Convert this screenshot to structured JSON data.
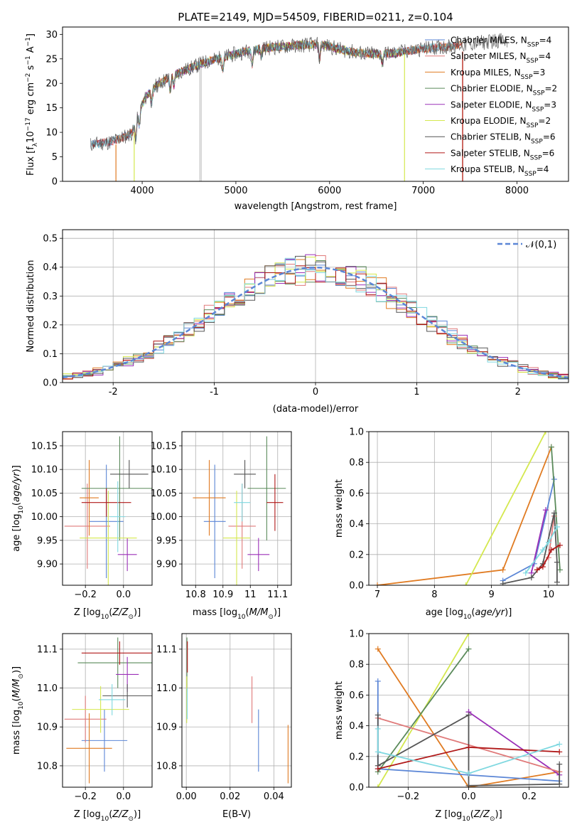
{
  "figure_title": "PLATE=2149, MJD=54509, FIBERID=0211, z=0.104",
  "colors": {
    "Chabrier MILES": "#5b86d6",
    "Salpeter MILES": "#e07a7a",
    "Kroupa MILES": "#e07b22",
    "Chabrier ELODIE": "#5a8a5a",
    "Salpeter ELODIE": "#9b30b8",
    "Kroupa ELODIE": "#d4e84e",
    "Chabrier STELIB": "#555555",
    "Salpeter STELIB": "#b01818",
    "Kroupa STELIB": "#7fd8e0",
    "Salpeter MILES (corner panels)": "#e38aa8"
  },
  "chart_data": [
    {
      "id": "spectrum",
      "type": "line",
      "title": "",
      "xlabel": "wavelength [Angstrom, rest frame]",
      "ylabel": "Flux [f_λ 10^-17 erg cm^-2 s^-1 A^-1]",
      "xlim": [
        3150,
        8550
      ],
      "ylim": [
        0,
        31.5
      ],
      "xticks": [
        4000,
        5000,
        6000,
        7000,
        8000
      ],
      "yticks": [
        0,
        5,
        10,
        15,
        20,
        25,
        30
      ],
      "grid": false,
      "legend_position": "top-right",
      "legend": [
        {
          "label": "Chabrier MILES, N_SSP=4",
          "base": "Chabrier MILES, N",
          "sub": "SSP",
          "suffix": "=4",
          "color_key": "Chabrier MILES"
        },
        {
          "label": "Salpeter MILES, N_SSP=4",
          "base": "Salpeter MILES, N",
          "sub": "SSP",
          "suffix": "=4",
          "color_key": "Salpeter MILES"
        },
        {
          "label": "Kroupa MILES, N_SSP=3",
          "base": "Kroupa MILES, N",
          "sub": "SSP",
          "suffix": "=3",
          "color_key": "Kroupa MILES"
        },
        {
          "label": "Chabrier ELODIE, N_SSP=2",
          "base": "Chabrier ELODIE, N",
          "sub": "SSP",
          "suffix": "=2",
          "color_key": "Chabrier ELODIE"
        },
        {
          "label": "Salpeter ELODIE, N_SSP=3",
          "base": "Salpeter ELODIE, N",
          "sub": "SSP",
          "suffix": "=3",
          "color_key": "Salpeter ELODIE"
        },
        {
          "label": "Kroupa ELODIE, N_SSP=2",
          "base": "Kroupa ELODIE, N",
          "sub": "SSP",
          "suffix": "=2",
          "color_key": "Kroupa ELODIE"
        },
        {
          "label": "Chabrier STELIB, N_SSP=6",
          "base": "Chabrier STELIB, N",
          "sub": "SSP",
          "suffix": "=6",
          "color_key": "Chabrier STELIB"
        },
        {
          "label": "Salpeter STELIB, N_SSP=6",
          "base": "Salpeter STELIB, N",
          "sub": "SSP",
          "suffix": "=6",
          "color_key": "Salpeter STELIB"
        },
        {
          "label": "Kroupa STELIB, N_SSP=4",
          "base": "Kroupa STELIB, N",
          "sub": "SSP",
          "suffix": "=4",
          "color_key": "Kroupa STELIB"
        }
      ],
      "continuum": {
        "x": [
          3450,
          3650,
          3800,
          3900,
          3950,
          4050,
          4150,
          4300,
          4500,
          4700,
          4900,
          5100,
          5300,
          5500,
          5700,
          5900,
          6100,
          6300,
          6500,
          6700,
          6900,
          7100,
          7300,
          7500,
          7700,
          7800,
          7900
        ],
        "y": [
          7.5,
          8.0,
          9.0,
          10.0,
          14.0,
          17.5,
          19.5,
          21.5,
          23.0,
          24.5,
          25.5,
          26.5,
          27.2,
          27.5,
          27.8,
          28.0,
          27.0,
          26.2,
          26.0,
          26.2,
          26.8,
          27.3,
          27.6,
          28.0,
          28.5,
          28.8,
          28.5
        ]
      },
      "absorption_lines": [
        {
          "x": 3934,
          "depth": 4
        },
        {
          "x": 3969,
          "depth": 3.5
        },
        {
          "x": 4102,
          "depth": 2.5
        },
        {
          "x": 4300,
          "depth": 3
        },
        {
          "x": 4340,
          "depth": 2.5
        },
        {
          "x": 4861,
          "depth": 2.5
        },
        {
          "x": 5175,
          "depth": 3
        },
        {
          "x": 5270,
          "depth": 1.5
        },
        {
          "x": 5893,
          "depth": 3
        },
        {
          "x": 6563,
          "depth": 2
        }
      ],
      "edge_drops": [
        {
          "series": "Kroupa MILES",
          "x_start": 3720,
          "y_start": 7.5
        },
        {
          "series": "Kroupa MILES",
          "x_end": 7420,
          "y_end": 26.5
        },
        {
          "series": "Kroupa ELODIE",
          "x_start": 3915,
          "y_start": 10.0
        },
        {
          "series": "Kroupa ELODIE",
          "x_end": 6800,
          "y_end": 26.0
        },
        {
          "series": "Salpeter STELIB",
          "x_end": 7420,
          "y_end": 26.5
        }
      ],
      "masked_regions": [
        {
          "x": 4615,
          "ymax": 25.5
        },
        {
          "x": 4630,
          "ymax": 25.5
        }
      ]
    },
    {
      "id": "residuals",
      "type": "step",
      "xlabel": "(data-model)/error",
      "ylabel": "Normed distribution",
      "xlim": [
        -2.5,
        2.5
      ],
      "ylim": [
        0,
        0.53
      ],
      "xticks": [
        -2,
        -1,
        0,
        1,
        2
      ],
      "yticks": [
        0.0,
        0.1,
        0.2,
        0.3,
        0.4,
        0.5
      ],
      "grid": true,
      "legend_position": "top-right",
      "legend": [
        {
          "label": "𝒩(0,1)",
          "style": "dashed",
          "color_key": "Chabrier MILES"
        }
      ],
      "bin_width": 0.1,
      "bins_start": -2.5,
      "reference_curve": "standard normal density",
      "series": [
        {
          "name": "Chabrier MILES",
          "jitter_seed": 1
        },
        {
          "name": "Salpeter MILES",
          "jitter_seed": 2
        },
        {
          "name": "Kroupa MILES",
          "jitter_seed": 3
        },
        {
          "name": "Chabrier ELODIE",
          "jitter_seed": 4
        },
        {
          "name": "Salpeter ELODIE",
          "jitter_seed": 5
        },
        {
          "name": "Kroupa ELODIE",
          "jitter_seed": 6
        },
        {
          "name": "Chabrier STELIB",
          "jitter_seed": 7
        },
        {
          "name": "Salpeter STELIB",
          "jitter_seed": 8
        },
        {
          "name": "Kroupa STELIB",
          "jitter_seed": 9
        }
      ]
    },
    {
      "id": "age_vs_Z",
      "type": "scatter",
      "xlabel": "Z [log10(Z/Z⊙)]",
      "ylabel": "age [log10(age/yr)]",
      "xlim": [
        -0.32,
        0.15
      ],
      "ylim": [
        9.855,
        10.18
      ],
      "xticks": [
        -0.2,
        0.0
      ],
      "xticklabels": [
        "−0.2",
        "0.0"
      ],
      "yticks": [
        9.9,
        9.95,
        10.0,
        10.05,
        10.1,
        10.15
      ],
      "grid": true,
      "points": [
        {
          "series": "Chabrier MILES",
          "x": -0.09,
          "y": 9.99,
          "xerr": 0.09,
          "yerr": 0.12
        },
        {
          "series": "Salpeter MILES",
          "x": -0.19,
          "y": 9.98,
          "xerr": 0.12,
          "yerr": 0.09
        },
        {
          "series": "Kroupa MILES",
          "x": -0.18,
          "y": 10.04,
          "xerr": 0.05,
          "yerr": 0.08
        },
        {
          "series": "Chabrier ELODIE",
          "x": -0.02,
          "y": 10.06,
          "xerr": 0.2,
          "yerr": 0.11
        },
        {
          "series": "Salpeter ELODIE",
          "x": 0.02,
          "y": 9.92,
          "xerr": 0.05,
          "yerr": 0.035
        },
        {
          "series": "Kroupa ELODIE",
          "x": -0.08,
          "y": 9.955,
          "xerr": 0.15,
          "yerr": 0.1
        },
        {
          "series": "Chabrier STELIB",
          "x": 0.03,
          "y": 10.09,
          "xerr": 0.1,
          "yerr": 0.03
        },
        {
          "series": "Salpeter STELIB",
          "x": -0.09,
          "y": 10.03,
          "xerr": 0.13,
          "yerr": 0.03
        },
        {
          "series": "Kroupa STELIB",
          "x": -0.03,
          "y": 10.0,
          "xerr": 0.04,
          "yerr": 0.075
        }
      ]
    },
    {
      "id": "age_vs_mass",
      "type": "scatter",
      "xlabel": "mass [log10(M/M⊙)]",
      "ylabel": "",
      "xlim": [
        10.75,
        11.15
      ],
      "ylim": [
        9.855,
        10.18
      ],
      "xticks": [
        10.8,
        10.9,
        11.0,
        11.1
      ],
      "yticks": [
        9.9,
        9.95,
        10.0,
        10.05,
        10.1,
        10.15
      ],
      "grid": true,
      "points": [
        {
          "series": "Chabrier MILES",
          "x": 10.87,
          "y": 9.99,
          "xerr": 0.04,
          "yerr": 0.12
        },
        {
          "series": "Salpeter MILES",
          "x": 10.97,
          "y": 9.98,
          "xerr": 0.05,
          "yerr": 0.09
        },
        {
          "series": "Kroupa MILES",
          "x": 10.85,
          "y": 10.04,
          "xerr": 0.06,
          "yerr": 0.08
        },
        {
          "series": "Chabrier ELODIE",
          "x": 11.06,
          "y": 10.06,
          "xerr": 0.07,
          "yerr": 0.11
        },
        {
          "series": "Salpeter ELODIE",
          "x": 11.03,
          "y": 9.92,
          "xerr": 0.04,
          "yerr": 0.035
        },
        {
          "series": "Kroupa ELODIE",
          "x": 10.95,
          "y": 9.955,
          "xerr": 0.05,
          "yerr": 0.1
        },
        {
          "series": "Chabrier STELIB",
          "x": 10.98,
          "y": 10.09,
          "xerr": 0.04,
          "yerr": 0.03
        },
        {
          "series": "Salpeter STELIB",
          "x": 11.09,
          "y": 10.03,
          "xerr": 0.03,
          "yerr": 0.06
        },
        {
          "series": "Kroupa STELIB",
          "x": 10.97,
          "y": 10.03,
          "xerr": 0.03,
          "yerr": 0.04
        }
      ]
    },
    {
      "id": "weight_vs_age",
      "type": "line",
      "xlabel": "age [log10(age/yr)]",
      "ylabel": "mass weight",
      "xlim": [
        6.85,
        10.35
      ],
      "ylim": [
        0,
        1.0
      ],
      "xticks": [
        7,
        8,
        9,
        10
      ],
      "yticks": [
        0.0,
        0.2,
        0.4,
        0.6,
        0.8,
        1.0
      ],
      "grid": true,
      "series": [
        {
          "name": "Kroupa MILES",
          "x": [
            7.0,
            9.2,
            10.05
          ],
          "y": [
            0.0,
            0.1,
            0.9
          ]
        },
        {
          "name": "Kroupa ELODIE",
          "x": [
            8.55,
            9.95
          ],
          "y": [
            0.0,
            1.0
          ]
        },
        {
          "name": "Chabrier MILES",
          "x": [
            9.2,
            9.75,
            10.1
          ],
          "y": [
            0.03,
            0.14,
            0.69
          ]
        },
        {
          "name": "Chabrier ELODIE",
          "x": [
            10.05,
            10.2
          ],
          "y": [
            0.9,
            0.1
          ]
        },
        {
          "name": "Salpeter ELODIE",
          "x": [
            9.7,
            9.95
          ],
          "y": [
            0.08,
            0.49
          ]
        },
        {
          "name": "Salpeter MILES",
          "x": [
            9.8,
            10.0,
            10.1
          ],
          "y": [
            0.1,
            0.18,
            0.45
          ]
        },
        {
          "name": "Chabrier STELIB",
          "x": [
            9.2,
            9.7,
            9.9,
            10.1,
            10.15,
            10.15
          ],
          "y": [
            0.01,
            0.05,
            0.14,
            0.47,
            0.15,
            0.02
          ]
        },
        {
          "name": "Salpeter STELIB",
          "x": [
            9.8,
            9.9,
            10.05,
            10.2
          ],
          "y": [
            0.1,
            0.12,
            0.23,
            0.26
          ]
        },
        {
          "name": "Kroupa STELIB",
          "x": [
            9.6,
            9.9,
            10.0,
            10.15
          ],
          "y": [
            0.08,
            0.23,
            0.28,
            0.38
          ]
        }
      ]
    },
    {
      "id": "mass_vs_Z",
      "type": "scatter",
      "xlabel": "Z [log10(Z/Z⊙)]",
      "ylabel": "mass [log10(M/M⊙)]",
      "xlim": [
        -0.32,
        0.15
      ],
      "ylim": [
        10.745,
        11.14
      ],
      "xticks": [
        -0.2,
        0.0
      ],
      "xticklabels": [
        "−0.2",
        "0.0"
      ],
      "yticks": [
        10.8,
        10.9,
        11.0,
        11.1
      ],
      "grid": true,
      "points": [
        {
          "series": "Chabrier MILES",
          "x": -0.1,
          "y": 10.865,
          "xerr": 0.12,
          "yerr": 0.08
        },
        {
          "series": "Salpeter MILES",
          "x": -0.2,
          "y": 10.92,
          "xerr": 0.11,
          "yerr": 0.06
        },
        {
          "series": "Kroupa MILES",
          "x": -0.18,
          "y": 10.845,
          "xerr": 0.12,
          "yerr": 0.09
        },
        {
          "series": "Chabrier ELODIE",
          "x": -0.03,
          "y": 11.065,
          "xerr": 0.21,
          "yerr": 0.065
        },
        {
          "series": "Salpeter ELODIE",
          "x": 0.02,
          "y": 11.035,
          "xerr": 0.06,
          "yerr": 0.045
        },
        {
          "series": "Kroupa ELODIE",
          "x": -0.12,
          "y": 10.945,
          "xerr": 0.15,
          "yerr": 0.06
        },
        {
          "series": "Chabrier STELIB",
          "x": 0.02,
          "y": 10.98,
          "xerr": 0.13,
          "yerr": 0.03
        },
        {
          "series": "Salpeter STELIB",
          "x": -0.02,
          "y": 11.09,
          "xerr": 0.2,
          "yerr": 0.03
        },
        {
          "series": "Kroupa STELIB",
          "x": -0.06,
          "y": 10.97,
          "xerr": 0.07,
          "yerr": 0.04
        }
      ]
    },
    {
      "id": "mass_vs_EBV",
      "type": "scatter",
      "xlabel": "E(B-V)",
      "ylabel": "",
      "xlim": [
        -0.002,
        0.048
      ],
      "ylim": [
        10.745,
        11.14
      ],
      "xticks": [
        0.0,
        0.02,
        0.04
      ],
      "xticklabels": [
        "0.00",
        "0.02",
        "0.04"
      ],
      "yticks": [
        10.8,
        10.9,
        11.0,
        11.1
      ],
      "grid": true,
      "points": [
        {
          "series": "Chabrier MILES",
          "x": 0.033,
          "y": 10.865,
          "xerr": 0.0,
          "yerr": 0.08
        },
        {
          "series": "Salpeter MILES",
          "x": 0.03,
          "y": 10.97,
          "xerr": 0.0,
          "yerr": 0.06
        },
        {
          "series": "Kroupa MILES",
          "x": 0.0465,
          "y": 10.83,
          "xerr": 0.0,
          "yerr": 0.075
        },
        {
          "series": "Chabrier ELODIE",
          "x": 0.0003,
          "y": 11.06,
          "xerr": 0.0,
          "yerr": 0.07
        },
        {
          "series": "Kroupa ELODIE",
          "x": 0.0002,
          "y": 10.97,
          "xerr": 0.0,
          "yerr": 0.06
        },
        {
          "series": "Salpeter STELIB",
          "x": 0.0005,
          "y": 11.08,
          "xerr": 0.0,
          "yerr": 0.04
        },
        {
          "series": "Kroupa STELIB",
          "x": 0.0004,
          "y": 10.96,
          "xerr": 0.0,
          "yerr": 0.04
        }
      ]
    },
    {
      "id": "weight_vs_Z",
      "type": "line",
      "xlabel": "Z [log10(Z/Z⊙)]",
      "ylabel": "mass weight",
      "xlim": [
        -0.33,
        0.33
      ],
      "ylim": [
        0,
        1.0
      ],
      "xticks": [
        -0.2,
        0.0,
        0.2
      ],
      "xticklabels": [
        "−0.2",
        "0.0",
        "0.2"
      ],
      "yticks": [
        0.0,
        0.2,
        0.4,
        0.6,
        0.8,
        1.0
      ],
      "grid": true,
      "series": [
        {
          "name": "Kroupa MILES",
          "x": [
            -0.3,
            0.0,
            0.3
          ],
          "y": [
            0.9,
            0.0,
            0.1
          ]
        },
        {
          "name": "Kroupa ELODIE",
          "x": [
            -0.3,
            0.0
          ],
          "y": [
            0.0,
            1.0
          ]
        },
        {
          "name": "Chabrier MILES",
          "x": [
            -0.3,
            -0.3,
            0.3
          ],
          "y": [
            0.69,
            0.12,
            0.04
          ]
        },
        {
          "name": "Chabrier ELODIE",
          "x": [
            -0.3,
            0.0
          ],
          "y": [
            0.1,
            0.9
          ]
        },
        {
          "name": "Salpeter ELODIE",
          "x": [
            0.0,
            0.0,
            0.3
          ],
          "y": [
            0.49,
            0.49,
            0.08
          ]
        },
        {
          "name": "Salpeter MILES",
          "x": [
            -0.3,
            0.3
          ],
          "y": [
            0.45,
            0.1
          ]
        },
        {
          "name": "Chabrier STELIB",
          "x": [
            -0.3,
            -0.3,
            0.0,
            0.0,
            0.3,
            0.3
          ],
          "y": [
            0.47,
            0.14,
            0.47,
            0.01,
            0.02,
            0.15
          ]
        },
        {
          "name": "Salpeter STELIB",
          "x": [
            -0.3,
            0.0,
            0.3
          ],
          "y": [
            0.12,
            0.26,
            0.23
          ]
        },
        {
          "name": "Kroupa STELIB",
          "x": [
            -0.3,
            -0.3,
            0.0,
            0.3
          ],
          "y": [
            0.38,
            0.23,
            0.09,
            0.28
          ]
        }
      ]
    }
  ]
}
